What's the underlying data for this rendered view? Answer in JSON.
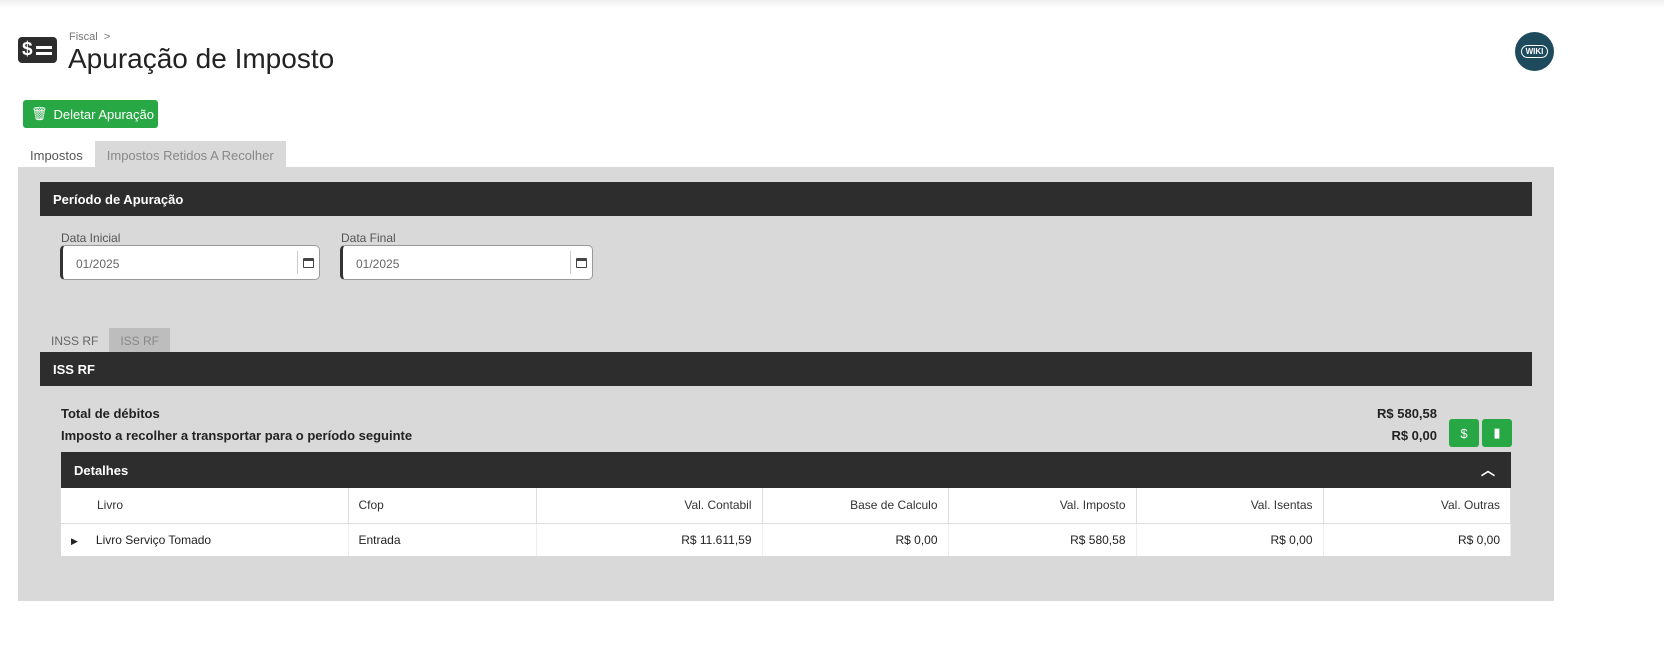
{
  "header": {
    "breadcrumb": "Fiscal",
    "breadcrumb_sep": ">",
    "title": "Apuração de Imposto",
    "app_icon": "dollar-list-icon",
    "wiki": "WIKI"
  },
  "toolbar": {
    "delete_label": "Deletar Apuração"
  },
  "tabs": [
    {
      "label": "Impostos",
      "active": true
    },
    {
      "label": "Impostos Retidos A Recolher",
      "active": false
    }
  ],
  "periodo": {
    "title": "Período de Apuração",
    "data_inicial_label": "Data Inicial",
    "data_inicial": "01/2025",
    "data_final_label": "Data Final",
    "data_final": "01/2025"
  },
  "subtabs": [
    {
      "label": "INSS RF",
      "active": false
    },
    {
      "label": "ISS RF",
      "active": true
    }
  ],
  "iss": {
    "title": "ISS RF",
    "total_debitos_label": "Total de débitos",
    "total_debitos": "R$ 580,58",
    "recolher_label": "Imposto a recolher a transportar para o período seguinte",
    "recolher": "R$ 0,00"
  },
  "detalhes": {
    "title": "Detalhes",
    "columns": [
      "Livro",
      "Cfop",
      "Val. Contabil",
      "Base de Calculo",
      "Val. Imposto",
      "Val. Isentas",
      "Val. Outras"
    ],
    "rows": [
      [
        "Livro Serviço Tomado",
        "Entrada",
        "R$ 11.611,59",
        "R$ 0,00",
        "R$ 580,58",
        "R$ 0,00",
        "R$ 0,00"
      ]
    ]
  },
  "colors": {
    "accent": "#28a745",
    "dark": "#2d2d2d",
    "panel": "#d9d9d9"
  }
}
